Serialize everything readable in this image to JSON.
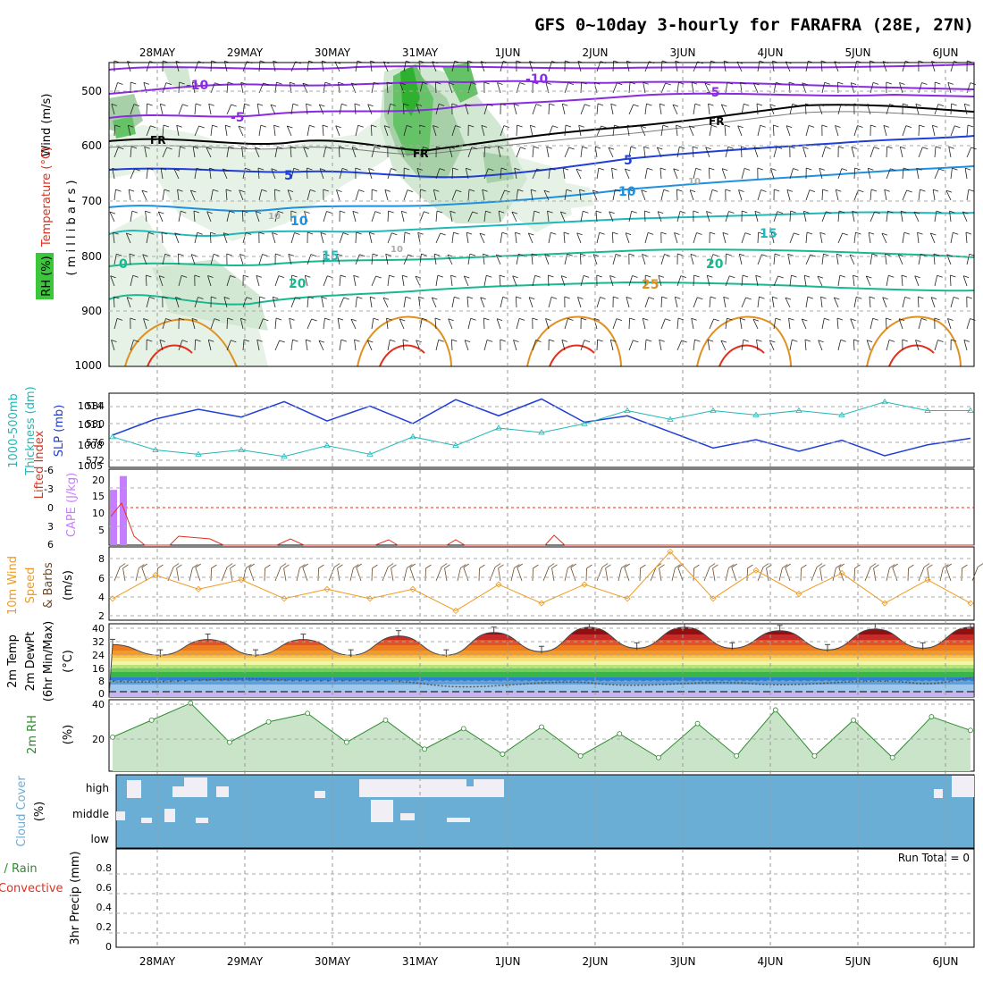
{
  "title": "GFS 0~10day 3-hourly for FARAFRA (28E, 27N)",
  "colors": {
    "rh_green": "#3cc63c",
    "temp_red": "#e0301e",
    "wind_purple": "#8a2be2",
    "slp_blue": "#1f3fd6",
    "thickness_cyan": "#20b8b8",
    "cape_purple": "#c77dff",
    "li_red": "#e0301e",
    "wind_orange": "#f09a1e",
    "rh_fill": "#9ccf9c",
    "cloud_blue": "#6aaed6",
    "cloud_white": "#f1eef6"
  },
  "dates": [
    "28MAY",
    "29MAY",
    "30MAY",
    "31MAY",
    "1JUN",
    "2JUN",
    "3JUN",
    "4JUN",
    "5JUN",
    "6JUN"
  ],
  "panels": {
    "upper": {
      "label_rh": "RH (%)",
      "label_temp": "Temperature (°C)",
      "label_wind": "Wind (m/s)",
      "label_mb": "( m i l l i b a r s )",
      "yticks": [
        "500",
        "600",
        "700",
        "800",
        "900",
        "1000"
      ],
      "contour_labels": [
        "-10",
        "-10",
        "-5",
        "-5",
        "FR",
        "FR",
        "FR",
        "5",
        "5",
        "10",
        "10",
        "10",
        "15",
        "15",
        "20",
        "20",
        "25",
        "0",
        "10",
        "10",
        "10"
      ]
    },
    "pressure": {
      "label_thick": "Thickness (dm)",
      "label_thick2": "1000-500mb",
      "label_slp": "SLP (mb)",
      "yticks_left": [
        "584",
        "580",
        "576",
        "572"
      ],
      "yticks_right": [
        "1014",
        "1011",
        "1008",
        "1005"
      ]
    },
    "cape": {
      "label_li": "Lifted Index",
      "label_cape": "CAPE (J/kg)",
      "yticks_left": [
        "-6",
        "-3",
        "0",
        "3",
        "6"
      ],
      "yticks_right": [
        "20",
        "15",
        "10",
        "5"
      ]
    },
    "wind10": {
      "label1": "10m Wind",
      "label2": "Speed",
      "label3": "& Barbs",
      "unit": "(m/s)",
      "yticks": [
        "8",
        "6",
        "4",
        "2"
      ]
    },
    "temp2m": {
      "label1": "2m Temp",
      "label2": "2m DewPt",
      "label3": "(6hr Min/Max)",
      "unit": "(°C)",
      "yticks": [
        "40",
        "32",
        "24",
        "16",
        "8",
        "0"
      ]
    },
    "rh2m": {
      "label": "2m RH",
      "unit": "(%)",
      "yticks": [
        "40",
        "20"
      ]
    },
    "cloud": {
      "label": "Cloud Cover",
      "unit": "(%)",
      "levels": [
        "high",
        "middle",
        "low"
      ]
    },
    "precip": {
      "label1": "Total / Rain",
      "label2": "Convective",
      "label3": "3hr Precip (mm)",
      "run_total": "Run Total = 0",
      "yticks": [
        "0.8",
        "0.6",
        "0.4",
        "0.2",
        "0"
      ]
    }
  },
  "chart_data": [
    {
      "type": "line",
      "title": "SLP (mb)",
      "ylim": [
        1005,
        1015
      ],
      "x": [
        "27MAY12",
        "28MAY00",
        "28MAY12",
        "29MAY00",
        "29MAY12",
        "30MAY00",
        "30MAY12",
        "31MAY00",
        "31MAY12",
        "1JUN00",
        "1JUN12",
        "2JUN00",
        "2JUN12",
        "3JUN00",
        "3JUN12",
        "4JUN00",
        "4JUN12",
        "5JUN00",
        "5JUN12",
        "6JUN00",
        "6JUN12"
      ],
      "series": [
        {
          "name": "SLP",
          "values": [
            1009,
            1011.5,
            1013,
            1011.8,
            1014.2,
            1011.2,
            1013.5,
            1010.8,
            1014.5,
            1012,
            1014.6,
            1011,
            1012,
            1009.5,
            1007,
            1008.3,
            1006.5,
            1008.2,
            1005.8,
            1007.5,
            1008.5
          ]
        },
        {
          "name": "Thickness",
          "values": [
            577,
            574,
            573,
            574,
            572.5,
            575,
            573,
            577,
            575,
            579,
            578,
            580,
            583,
            581,
            583,
            582,
            583,
            582,
            585,
            583,
            583
          ]
        }
      ]
    },
    {
      "type": "bar",
      "title": "CAPE (J/kg)",
      "categories": [
        "27MAY12",
        "27MAY15"
      ],
      "values": [
        16,
        20
      ]
    },
    {
      "type": "line",
      "title": "10m Wind Speed (m/s)",
      "ylim": [
        2,
        8
      ],
      "x": [
        "27MAY12",
        "28MAY00",
        "28MAY12",
        "29MAY00",
        "29MAY12",
        "30MAY00",
        "30MAY12",
        "31MAY00",
        "31MAY12",
        "1JUN00",
        "1JUN12",
        "2JUN00",
        "2JUN12",
        "3JUN00",
        "3JUN12",
        "4JUN00",
        "4JUN12",
        "5JUN00",
        "5JUN12",
        "6JUN00",
        "6JUN12"
      ],
      "series": [
        {
          "name": "Speed",
          "values": [
            3.5,
            6,
            4.5,
            5.5,
            3.5,
            4.5,
            3.5,
            4.5,
            2.2,
            5,
            3,
            5,
            3.5,
            8.5,
            3.5,
            6.5,
            4,
            6.2,
            3,
            5.5,
            3
          ]
        }
      ]
    },
    {
      "type": "area",
      "title": "2m Temp (°C)",
      "ylim": [
        0,
        42
      ],
      "x": [
        "28MAY00",
        "28MAY12",
        "29MAY00",
        "29MAY12",
        "30MAY00",
        "30MAY12",
        "31MAY00",
        "31MAY12",
        "1JUN00",
        "1JUN12",
        "2JUN00",
        "2JUN12",
        "3JUN00",
        "3JUN12",
        "4JUN00",
        "4JUN12",
        "5JUN00",
        "5JUN12",
        "6JUN00"
      ],
      "series": [
        {
          "name": "Temp",
          "values": [
            30,
            24,
            33,
            24,
            33,
            24,
            35,
            24,
            37,
            26,
            40,
            28,
            40,
            28,
            38,
            27,
            39,
            28,
            40
          ]
        }
      ]
    },
    {
      "type": "area",
      "title": "2m RH (%)",
      "ylim": [
        0,
        42
      ],
      "x": [
        "27MAY12",
        "28MAY00",
        "28MAY06",
        "28MAY12",
        "29MAY00",
        "29MAY06",
        "29MAY12",
        "30MAY00",
        "30MAY12",
        "31MAY00",
        "31MAY12",
        "1JUN00",
        "1JUN12",
        "2JUN00",
        "2JUN12",
        "3JUN00",
        "3JUN12",
        "4JUN00",
        "4JUN12",
        "5JUN00",
        "5JUN12",
        "6JUN00",
        "6JUN06"
      ],
      "series": [
        {
          "name": "RH",
          "values": [
            20,
            30,
            40,
            17,
            29,
            34,
            17,
            30,
            13,
            25,
            10,
            26,
            9,
            22,
            8,
            28,
            9,
            36,
            9,
            30,
            8,
            32,
            24
          ]
        }
      ]
    }
  ]
}
